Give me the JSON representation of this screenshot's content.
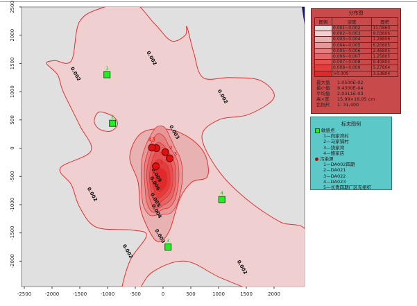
{
  "chart_data": {
    "type": "contour",
    "x_ticks": [
      -2500,
      -2000,
      -1500,
      -1000,
      -500,
      0,
      500,
      1000,
      1500,
      2000
    ],
    "y_ticks": [
      2500,
      2000,
      1500,
      1000,
      500,
      0,
      -500,
      -1000,
      -1500,
      -2000
    ],
    "xlim": [
      -2550,
      2550
    ],
    "ylim": [
      -2450,
      2500
    ],
    "contour_labels": [
      {
        "text": "0.002",
        "x": -1600,
        "y": 1300
      },
      {
        "text": "0.002",
        "x": -230,
        "y": 1580
      },
      {
        "text": "0.002",
        "x": 1050,
        "y": 900
      },
      {
        "text": "0.002",
        "x": -1300,
        "y": -830
      },
      {
        "text": "0.002",
        "x": -660,
        "y": -1840
      },
      {
        "text": "0.002",
        "x": 1400,
        "y": -2120
      },
      {
        "text": "0.003",
        "x": 180,
        "y": 270
      },
      {
        "text": "0.003",
        "x": -80,
        "y": -1570
      },
      {
        "text": "0.004",
        "x": -140,
        "y": -1130
      },
      {
        "text": "0.005",
        "x": -160,
        "y": -930
      },
      {
        "text": "0.006",
        "x": -170,
        "y": -640
      },
      {
        "text": "0.009",
        "x": -140,
        "y": -490
      }
    ],
    "receptors": [
      {
        "label": "1",
        "x": -1010,
        "y": 1300
      },
      {
        "label": "2",
        "x": -910,
        "y": 440
      },
      {
        "label": "3",
        "x": 90,
        "y": -1750
      },
      {
        "label": "4",
        "x": 1060,
        "y": -910
      }
    ],
    "sources": [
      {
        "label": "1",
        "x": -130,
        "y": -320
      },
      {
        "label": "2",
        "x": 40,
        "y": -70
      },
      {
        "label": "3",
        "x": 120,
        "y": -180
      },
      {
        "label": "4",
        "x": -120,
        "y": 0
      },
      {
        "label": "5",
        "x": -200,
        "y": 10
      }
    ],
    "source_labels_overlap": "43",
    "colors": {
      "background": "#e0e0e0",
      "level1": "#efcfcf",
      "level2": "#e9b2b2",
      "level3": "#e69898",
      "level4": "#e47f7f",
      "level5": "#e46767",
      "level6": "#e45151",
      "level7": "#e43c3c",
      "level8": "#e02a2a",
      "line": "#e03030",
      "receptor": "#22ee22",
      "source": "#e01010"
    }
  },
  "distribution_legend": {
    "title": "分布图",
    "headers": [
      "图例",
      "浓度",
      "面积"
    ],
    "rows": [
      {
        "color": "#e0e0e0",
        "range": "0.001~0.002",
        "area": "11.0860"
      },
      {
        "color": "#efcfcf",
        "range": "0.002~0.003",
        "area": "9.03806"
      },
      {
        "color": "#e9b2b2",
        "range": "0.003~0.004",
        "area": "1.28806"
      },
      {
        "color": "#e69898",
        "range": "0.004~0.005",
        "area": "6.20805"
      },
      {
        "color": "#e47f7f",
        "range": "0.005~0.006",
        "area": "2.46805"
      },
      {
        "color": "#e46767",
        "range": "0.006~0.007",
        "area": "1.25805"
      },
      {
        "color": "#e45151",
        "range": "0.007~0.008",
        "area": "9.40804"
      },
      {
        "color": "#e43c3c",
        "range": "0.008~0.009",
        "area": "5.27804"
      },
      {
        "color": "#e02a2a",
        "range": ">0.009",
        "area": "3.53804"
      }
    ],
    "stats": [
      {
        "label": "最大值",
        "value": "1.0500E-02"
      },
      {
        "label": "最小值",
        "value": "9.4300E-04"
      },
      {
        "label": "平均值",
        "value": "2.0311E-03"
      },
      {
        "label": "高×宽",
        "value": "15.99×16.05 cm"
      },
      {
        "label": "比例尺",
        "value": "1: 31,400"
      }
    ]
  },
  "marker_legend": {
    "title": "标志图例",
    "receptor_heading": "敏感点",
    "receptors": [
      "1—向家湾村",
      "2—马家铺村",
      "3—饶家湾",
      "4—鲍家店"
    ],
    "source_heading": "污染源",
    "sources": [
      "1—DA002四期",
      "2—DA021",
      "3—DA022",
      "4—DA023",
      "5—长青四期厂区无组织"
    ]
  }
}
